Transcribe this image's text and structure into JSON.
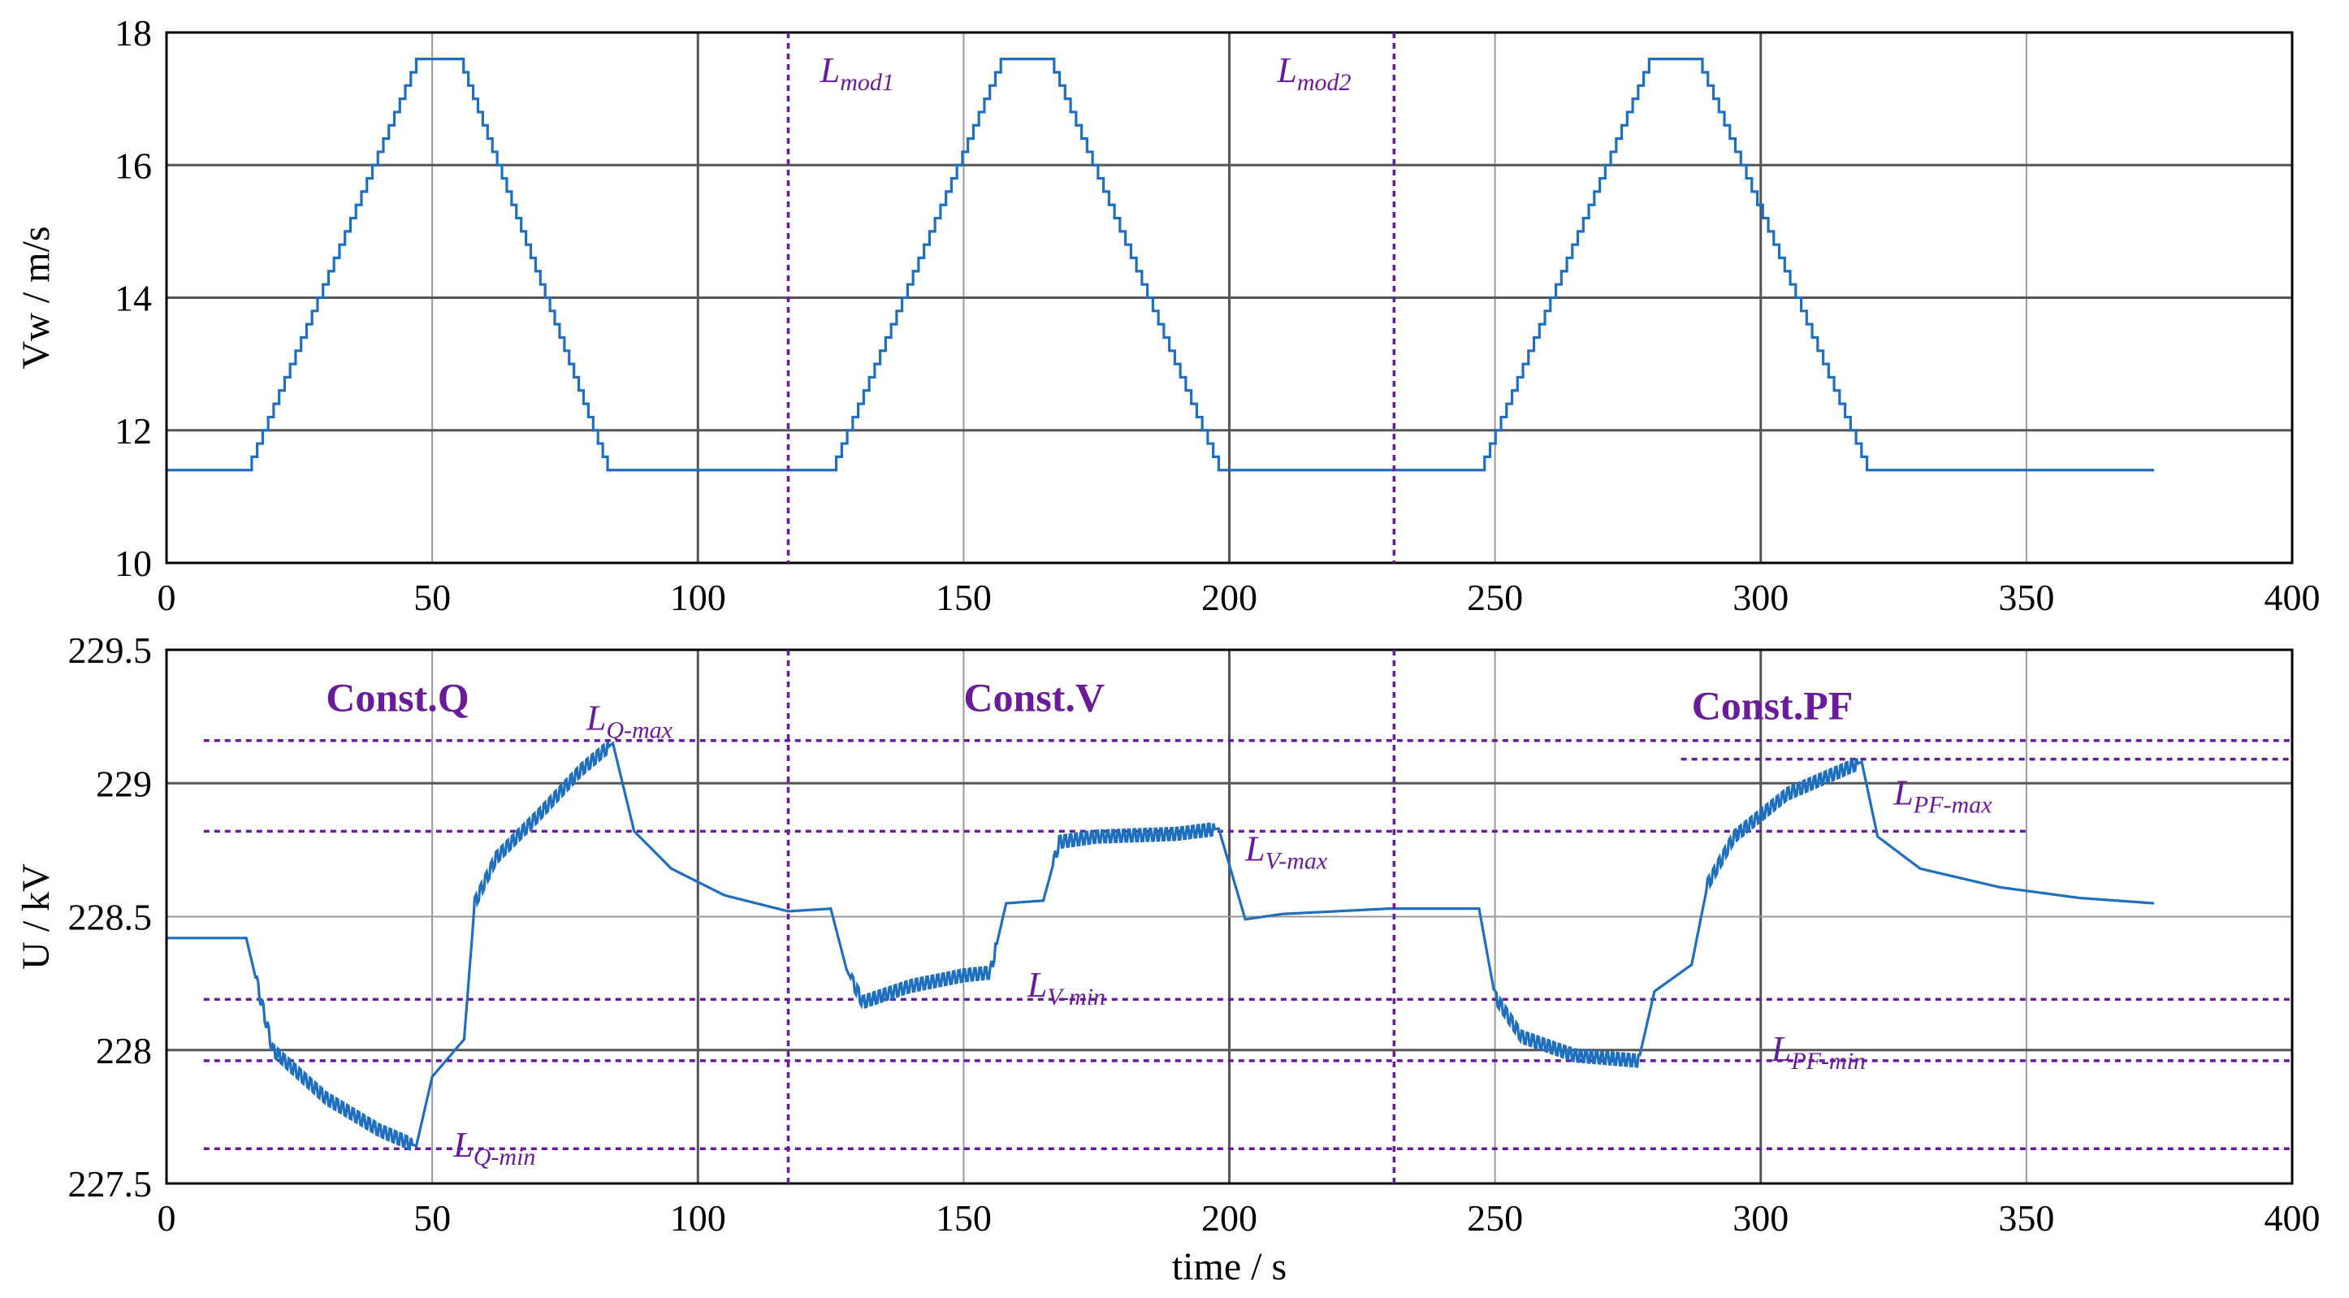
{
  "chart_data": [
    {
      "type": "line",
      "id": "wind",
      "xlabel": "",
      "ylabel": "Vw / m/s",
      "xlim": [
        0,
        400
      ],
      "ylim": [
        10,
        18
      ],
      "xticks": [
        "0",
        "50",
        "100",
        "150",
        "200",
        "250",
        "300",
        "350",
        "400"
      ],
      "yticks": [
        "10",
        "12",
        "14",
        "16",
        "18"
      ],
      "grid": true,
      "series_color": "#1f6fbf",
      "x": [
        0,
        15,
        47,
        55,
        83,
        125,
        157,
        166,
        198,
        247,
        279,
        288,
        320,
        374
      ],
      "y": [
        11.4,
        11.4,
        17.6,
        17.6,
        11.4,
        11.4,
        17.6,
        17.6,
        11.4,
        11.4,
        17.6,
        17.6,
        11.4,
        11.4
      ],
      "annotations": [
        {
          "text": "L",
          "sub": "mod1",
          "x": 123,
          "y": 17.25
        },
        {
          "text": "L",
          "sub": "mod2",
          "x": 209,
          "y": 17.25
        }
      ]
    },
    {
      "type": "line",
      "id": "voltage",
      "xlabel": "time / s",
      "ylabel": "U / kV",
      "xlim": [
        0,
        400
      ],
      "ylim": [
        227.5,
        229.5
      ],
      "xticks": [
        "0",
        "50",
        "100",
        "150",
        "200",
        "250",
        "300",
        "350",
        "400"
      ],
      "yticks": [
        "227.5",
        "228",
        "228.5",
        "229",
        "229.5"
      ],
      "grid": true,
      "series_color": "#1f6fbf",
      "x": [
        0,
        15,
        20,
        30,
        40,
        47,
        50,
        56,
        58,
        62,
        70,
        78,
        84,
        88,
        95,
        105,
        117,
        125,
        128,
        131,
        140,
        150,
        155,
        158,
        165,
        168,
        175,
        190,
        198,
        203,
        210,
        230,
        247,
        250,
        255,
        265,
        277,
        280,
        287,
        290,
        295,
        305,
        319,
        322,
        330,
        345,
        360,
        374
      ],
      "y": [
        228.42,
        228.42,
        228.0,
        227.82,
        227.7,
        227.64,
        227.9,
        228.04,
        228.55,
        228.72,
        228.88,
        229.05,
        229.15,
        228.82,
        228.68,
        228.58,
        228.52,
        228.53,
        228.3,
        228.18,
        228.24,
        228.28,
        228.29,
        228.55,
        228.56,
        228.78,
        228.8,
        228.81,
        228.83,
        228.49,
        228.51,
        228.53,
        228.53,
        228.2,
        228.05,
        227.98,
        227.96,
        228.22,
        228.32,
        228.62,
        228.8,
        228.96,
        229.08,
        228.8,
        228.68,
        228.61,
        228.57,
        228.55
      ],
      "limit_lines": [
        {
          "y": 229.16,
          "x0": 7,
          "x1": 400
        },
        {
          "y": 229.09,
          "x0": 285,
          "x1": 400
        },
        {
          "y": 228.82,
          "x0": 7,
          "x1": 350
        },
        {
          "y": 228.19,
          "x0": 7,
          "x1": 400
        },
        {
          "y": 227.96,
          "x0": 7,
          "x1": 400
        },
        {
          "y": 227.63,
          "x0": 7,
          "x1": 400
        }
      ],
      "annotations": [
        {
          "text": "Const.Q",
          "sub": "",
          "style": "bold",
          "x": 30,
          "y": 229.27
        },
        {
          "text": "Const.V",
          "sub": "",
          "style": "bold",
          "x": 150,
          "y": 229.27
        },
        {
          "text": "Const.PF",
          "sub": "",
          "style": "bold",
          "x": 287,
          "y": 229.24
        },
        {
          "text": "L",
          "sub": "Q-max",
          "style": "italic",
          "x": 79,
          "y": 229.2
        },
        {
          "text": "L",
          "sub": "V-max",
          "style": "italic",
          "x": 203,
          "y": 228.71
        },
        {
          "text": "L",
          "sub": "PF-max",
          "style": "italic",
          "x": 325,
          "y": 228.92
        },
        {
          "text": "L",
          "sub": "V-min",
          "style": "italic",
          "x": 162,
          "y": 228.2
        },
        {
          "text": "L",
          "sub": "PF-min",
          "style": "italic",
          "x": 302,
          "y": 227.96
        },
        {
          "text": "L",
          "sub": "Q-min",
          "style": "italic",
          "x": 54,
          "y": 227.6
        }
      ]
    }
  ],
  "mode_boundaries": [
    117,
    231
  ],
  "colors": {
    "series": "#1f6fbf",
    "annotation": "#6a1b9a",
    "grid": "#9a9a9a",
    "grid_strong": "#555555"
  }
}
